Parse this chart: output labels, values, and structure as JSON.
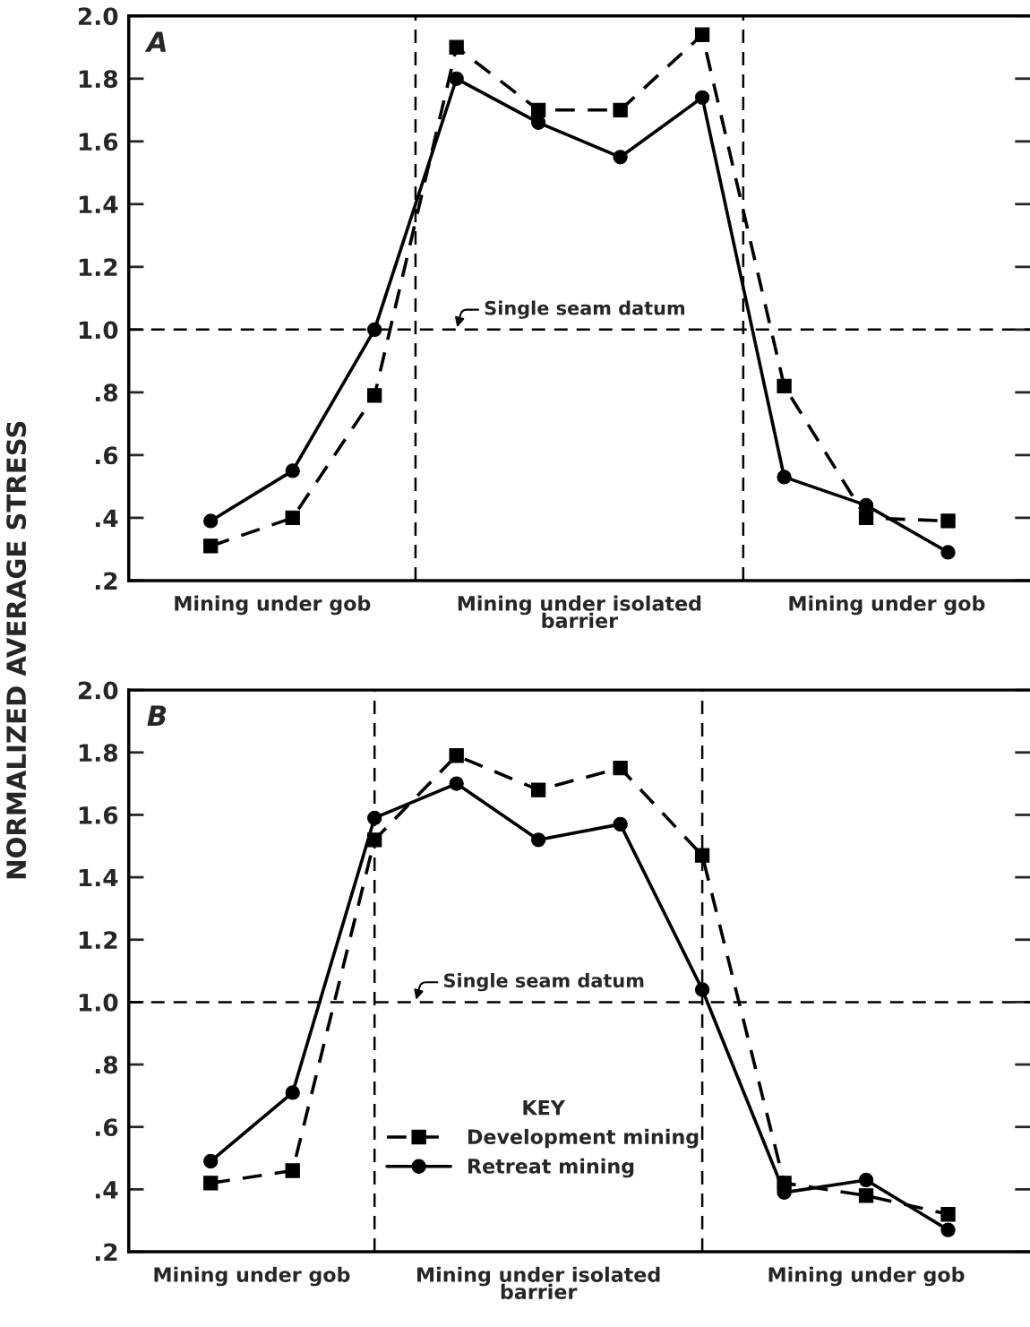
{
  "chart_data": [
    {
      "type": "line",
      "title": "A",
      "ylabel": "NORMALIZED AVERAGE STRESS",
      "categories": [
        null,
        null,
        null,
        null,
        null,
        null,
        null,
        null,
        null,
        null
      ],
      "ylim": [
        0.2,
        2.0
      ],
      "yticks": [
        {
          "value": 0.2,
          "label": ".2"
        },
        {
          "value": 0.4,
          "label": ".4"
        },
        {
          "value": 0.6,
          "label": ".6"
        },
        {
          "value": 0.8,
          "label": ".8"
        },
        {
          "value": 1.0,
          "label": "1.0"
        },
        {
          "value": 1.2,
          "label": "1.2"
        },
        {
          "value": 1.4,
          "label": "1.4"
        },
        {
          "value": 1.6,
          "label": "1.6"
        },
        {
          "value": 1.8,
          "label": "1.8"
        },
        {
          "value": 2.0,
          "label": "2.0"
        }
      ],
      "ref_lines": [
        {
          "axis": "y",
          "value": 1.0,
          "line_style": "dashed",
          "color": "#000000"
        }
      ],
      "annotations": [
        {
          "text": "Single seam datum",
          "y": 1.0
        },
        "Mining under gob",
        "Mining under isolated\nbarrier",
        "Mining under gob"
      ],
      "legend": false,
      "series": [
        {
          "color": "#000000",
          "marker": "square",
          "line_style": "dashed",
          "values": [
            0.31,
            0.4,
            0.79,
            1.9,
            1.7,
            1.7,
            1.94,
            0.82,
            0.4,
            0.39
          ]
        },
        {
          "color": "#000000",
          "marker": "circle",
          "line_style": "solid",
          "values": [
            0.39,
            0.55,
            1.0,
            1.8,
            1.66,
            1.55,
            1.74,
            0.53,
            0.44,
            0.29
          ]
        }
      ]
    },
    {
      "type": "line",
      "title": "B",
      "categories": [
        null,
        null,
        null,
        null,
        null,
        null,
        null,
        null,
        null,
        null
      ],
      "ylim": [
        0.2,
        2.0
      ],
      "yticks": [
        {
          "value": 0.2,
          "label": ".2"
        },
        {
          "value": 0.4,
          "label": ".4"
        },
        {
          "value": 0.6,
          "label": ".6"
        },
        {
          "value": 0.8,
          "label": ".8"
        },
        {
          "value": 1.0,
          "label": "1.0"
        },
        {
          "value": 1.2,
          "label": "1.2"
        },
        {
          "value": 1.4,
          "label": "1.4"
        },
        {
          "value": 1.6,
          "label": "1.6"
        },
        {
          "value": 1.8,
          "label": "1.8"
        },
        {
          "value": 2.0,
          "label": "2.0"
        }
      ],
      "ref_lines": [
        {
          "axis": "y",
          "value": 1.0,
          "line_style": "dashed",
          "color": "#000000"
        }
      ],
      "annotations": [
        {
          "text": "Single seam datum",
          "y": 1.0
        },
        "Mining under gob",
        "Mining under isolated\nbarrier",
        "Mining under gob"
      ],
      "legend": "lower center",
      "legend_title": "KEY",
      "series": [
        {
          "name": "Development mining",
          "color": "#000000",
          "marker": "square",
          "line_style": "dashed",
          "values": [
            0.42,
            0.46,
            1.52,
            1.79,
            1.68,
            1.75,
            1.47,
            0.42,
            0.38,
            0.32
          ]
        },
        {
          "name": "Retreat mining",
          "color": "#000000",
          "marker": "circle",
          "line_style": "solid",
          "values": [
            0.49,
            0.71,
            1.59,
            1.7,
            1.52,
            1.57,
            1.04,
            0.39,
            0.43,
            0.27
          ]
        }
      ]
    }
  ]
}
